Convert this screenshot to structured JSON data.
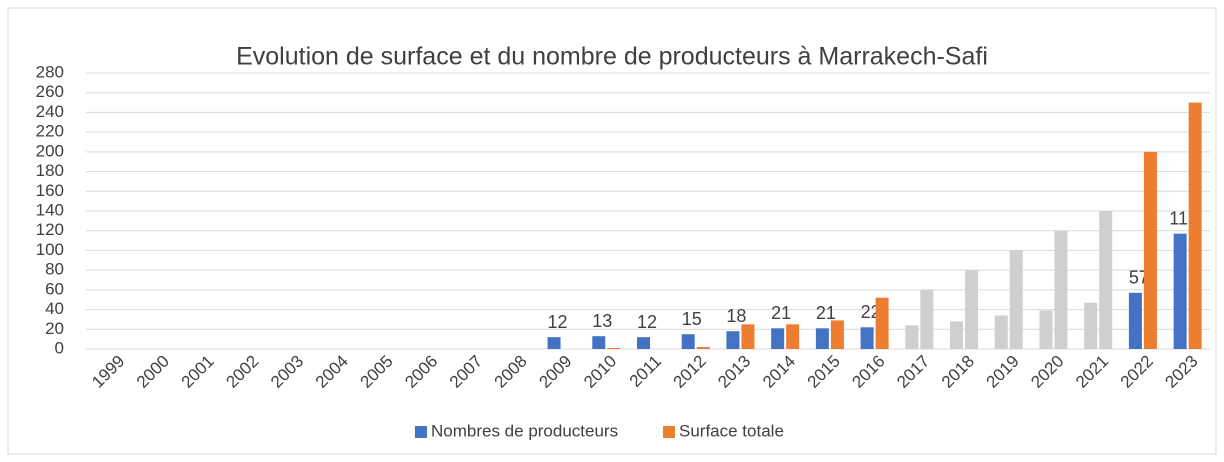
{
  "chart_data": {
    "type": "bar",
    "title": "Evolution de surface et du nombre de producteurs à Marrakech-Safi",
    "categories": [
      "1999",
      "2000",
      "2001",
      "2002",
      "2003",
      "2004",
      "2005",
      "2006",
      "2007",
      "2008",
      "2009",
      "2010",
      "2011",
      "2012",
      "2013",
      "2014",
      "2015",
      "2016",
      "2017",
      "2018",
      "2019",
      "2020",
      "2021",
      "2022",
      "2023"
    ],
    "series": [
      {
        "name": "Nombres de producteurs",
        "color": "#4472c4",
        "values": [
          0,
          0,
          0,
          0,
          0,
          0,
          0,
          0,
          0,
          0,
          12,
          13,
          12,
          15,
          18,
          21,
          21,
          22,
          24,
          28,
          34,
          39,
          47,
          57,
          117
        ],
        "value_labels": [
          null,
          null,
          null,
          null,
          null,
          null,
          null,
          null,
          null,
          null,
          "12",
          "13",
          "12",
          "15",
          "18",
          "21",
          "21",
          "22",
          null,
          null,
          null,
          null,
          null,
          "57",
          "117"
        ],
        "point_colors": [
          null,
          null,
          null,
          null,
          null,
          null,
          null,
          null,
          null,
          null,
          null,
          null,
          null,
          null,
          null,
          null,
          null,
          null,
          "#d0cece",
          "#d0cece",
          "#d0cece",
          "#d0cece",
          "#d0cece",
          null,
          null
        ]
      },
      {
        "name": "Surface totale",
        "color": "#ed7d31",
        "values": [
          0,
          0,
          0,
          0,
          0,
          0,
          0,
          0,
          0,
          0,
          0,
          1,
          0,
          2,
          25,
          25,
          29,
          52,
          60,
          80,
          100,
          120,
          140,
          200,
          250
        ],
        "point_colors": [
          null,
          null,
          null,
          null,
          null,
          null,
          null,
          null,
          null,
          null,
          null,
          null,
          null,
          null,
          null,
          null,
          null,
          null,
          "#d0cece",
          "#d0cece",
          "#d0cece",
          "#d0cece",
          "#d0cece",
          null,
          null
        ]
      }
    ],
    "ylim": [
      0,
      280
    ],
    "yticks": [
      0,
      20,
      40,
      60,
      80,
      100,
      120,
      140,
      160,
      180,
      200,
      220,
      240,
      260,
      280
    ],
    "grid": true,
    "legend": "bottom"
  }
}
